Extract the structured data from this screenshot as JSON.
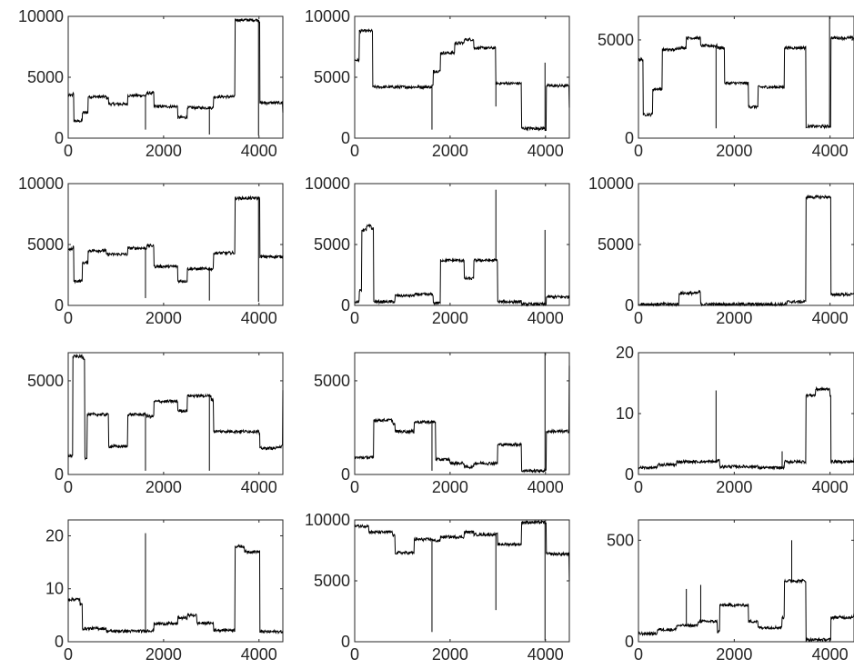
{
  "line_color": "#000000",
  "axis_color": "#262626",
  "chart_data": [
    {
      "type": "line",
      "xlim": [
        0,
        4500
      ],
      "ylim": [
        0,
        10000
      ],
      "xticks": [
        0,
        2000,
        4000
      ],
      "yticks": [
        0,
        5000,
        10000
      ],
      "xtick_labels": [
        "0",
        "2000",
        "4000"
      ],
      "ytick_labels": [
        "0",
        "5000",
        "10000"
      ],
      "segments": [
        [
          0,
          3500
        ],
        [
          100,
          3700
        ],
        [
          120,
          1400
        ],
        [
          300,
          2100
        ],
        [
          420,
          3400
        ],
        [
          800,
          3300
        ],
        [
          850,
          2800
        ],
        [
          1250,
          3500
        ],
        [
          1650,
          3700
        ],
        [
          1800,
          2600
        ],
        [
          2300,
          1700
        ],
        [
          2500,
          2500
        ],
        [
          3050,
          3400
        ],
        [
          3500,
          9700
        ],
        [
          4000,
          9600
        ],
        [
          4020,
          2900
        ],
        [
          4500,
          2100
        ]
      ],
      "spikes": [
        [
          1620,
          700
        ],
        [
          2960,
          300
        ],
        [
          3990,
          200
        ]
      ]
    },
    {
      "type": "line",
      "xlim": [
        0,
        4500
      ],
      "ylim": [
        0,
        10000
      ],
      "xticks": [
        0,
        2000,
        4000
      ],
      "yticks": [
        0,
        5000,
        10000
      ],
      "xtick_labels": [
        "0",
        "2000",
        "4000"
      ],
      "ytick_labels": [
        "0",
        "5000",
        "10000"
      ],
      "segments": [
        [
          0,
          6400
        ],
        [
          100,
          8800
        ],
        [
          380,
          4200
        ],
        [
          1620,
          4300
        ],
        [
          1650,
          5500
        ],
        [
          1800,
          7000
        ],
        [
          2100,
          7800
        ],
        [
          2300,
          8100
        ],
        [
          2500,
          7400
        ],
        [
          2960,
          4500
        ],
        [
          3500,
          800
        ],
        [
          3990,
          700
        ],
        [
          4020,
          4300
        ],
        [
          4500,
          2500
        ]
      ],
      "spikes": [
        [
          1620,
          700
        ],
        [
          2960,
          2600
        ],
        [
          3990,
          6200
        ]
      ]
    },
    {
      "type": "line",
      "xlim": [
        0,
        4500
      ],
      "ylim": [
        0,
        6200
      ],
      "xticks": [
        0,
        2000,
        4000
      ],
      "yticks": [
        0,
        5000
      ],
      "xtick_labels": [
        "0",
        "2000",
        "4000"
      ],
      "ytick_labels": [
        "0",
        "5000"
      ],
      "segments": [
        [
          0,
          4000
        ],
        [
          100,
          1200
        ],
        [
          300,
          2500
        ],
        [
          500,
          4500
        ],
        [
          800,
          4600
        ],
        [
          1000,
          5100
        ],
        [
          1300,
          4700
        ],
        [
          1650,
          4600
        ],
        [
          1800,
          2800
        ],
        [
          2300,
          1600
        ],
        [
          2500,
          2600
        ],
        [
          3050,
          4600
        ],
        [
          3500,
          600
        ],
        [
          3990,
          600
        ],
        [
          4020,
          5100
        ],
        [
          4500,
          5100
        ]
      ],
      "spikes": [
        [
          1620,
          500
        ],
        [
          3990,
          6200
        ]
      ]
    },
    {
      "type": "line",
      "xlim": [
        0,
        4500
      ],
      "ylim": [
        0,
        10000
      ],
      "xticks": [
        0,
        2000,
        4000
      ],
      "yticks": [
        0,
        5000,
        10000
      ],
      "xtick_labels": [
        "0",
        "2000",
        "4000"
      ],
      "ytick_labels": [
        "0",
        "5000",
        "10000"
      ],
      "segments": [
        [
          0,
          4600
        ],
        [
          100,
          4800
        ],
        [
          120,
          2000
        ],
        [
          300,
          3500
        ],
        [
          420,
          4500
        ],
        [
          800,
          4200
        ],
        [
          1250,
          4700
        ],
        [
          1650,
          4900
        ],
        [
          1800,
          3200
        ],
        [
          2300,
          2000
        ],
        [
          2500,
          3000
        ],
        [
          3050,
          4300
        ],
        [
          3500,
          8800
        ],
        [
          4000,
          8800
        ],
        [
          4020,
          4000
        ],
        [
          4500,
          4100
        ]
      ],
      "spikes": [
        [
          1620,
          600
        ],
        [
          2960,
          400
        ],
        [
          3990,
          300
        ]
      ]
    },
    {
      "type": "line",
      "xlim": [
        0,
        4500
      ],
      "ylim": [
        0,
        10000
      ],
      "xticks": [
        0,
        2000,
        4000
      ],
      "yticks": [
        0,
        5000,
        10000
      ],
      "xtick_labels": [
        "0",
        "2000",
        "4000"
      ],
      "ytick_labels": [
        "0",
        "5000",
        "10000"
      ],
      "segments": [
        [
          0,
          300
        ],
        [
          100,
          1200
        ],
        [
          150,
          6200
        ],
        [
          250,
          6500
        ],
        [
          350,
          6300
        ],
        [
          400,
          300
        ],
        [
          800,
          300
        ],
        [
          850,
          800
        ],
        [
          1250,
          900
        ],
        [
          1650,
          200
        ],
        [
          1800,
          3700
        ],
        [
          2300,
          2200
        ],
        [
          2500,
          3700
        ],
        [
          3000,
          300
        ],
        [
          3500,
          100
        ],
        [
          4000,
          100
        ],
        [
          4020,
          700
        ],
        [
          4500,
          600
        ]
      ],
      "spikes": [
        [
          2960,
          9500
        ],
        [
          3990,
          6200
        ]
      ]
    },
    {
      "type": "line",
      "xlim": [
        0,
        4500
      ],
      "ylim": [
        0,
        10000
      ],
      "xticks": [
        0,
        2000,
        4000
      ],
      "yticks": [
        0,
        5000,
        10000
      ],
      "xtick_labels": [
        "0",
        "2000",
        "4000"
      ],
      "ytick_labels": [
        "0",
        "5000",
        "10000"
      ],
      "segments": [
        [
          0,
          100
        ],
        [
          800,
          100
        ],
        [
          850,
          1000
        ],
        [
          1250,
          1100
        ],
        [
          1300,
          100
        ],
        [
          3050,
          100
        ],
        [
          3100,
          300
        ],
        [
          3500,
          8900
        ],
        [
          4000,
          8800
        ],
        [
          4020,
          900
        ],
        [
          4500,
          900
        ]
      ],
      "spikes": []
    },
    {
      "type": "line",
      "xlim": [
        0,
        4500
      ],
      "ylim": [
        0,
        6500
      ],
      "xticks": [
        0,
        2000,
        4000
      ],
      "yticks": [
        0,
        5000
      ],
      "xtick_labels": [
        "0",
        "2000",
        "4000"
      ],
      "ytick_labels": [
        "0",
        "5000"
      ],
      "segments": [
        [
          0,
          1000
        ],
        [
          100,
          6300
        ],
        [
          300,
          6200
        ],
        [
          350,
          900
        ],
        [
          400,
          3200
        ],
        [
          800,
          3200
        ],
        [
          850,
          1500
        ],
        [
          1250,
          3200
        ],
        [
          1650,
          3100
        ],
        [
          1800,
          3900
        ],
        [
          2300,
          3400
        ],
        [
          2500,
          4200
        ],
        [
          3000,
          4000
        ],
        [
          3050,
          2300
        ],
        [
          4000,
          2200
        ],
        [
          4020,
          1400
        ],
        [
          4400,
          1500
        ],
        [
          4500,
          4500
        ]
      ],
      "spikes": [
        [
          1620,
          200
        ],
        [
          2960,
          200
        ]
      ]
    },
    {
      "type": "line",
      "xlim": [
        0,
        4500
      ],
      "ylim": [
        0,
        6500
      ],
      "xticks": [
        0,
        2000,
        4000
      ],
      "yticks": [
        0,
        5000
      ],
      "xtick_labels": [
        "0",
        "2000",
        "4000"
      ],
      "ytick_labels": [
        "0",
        "5000"
      ],
      "segments": [
        [
          0,
          900
        ],
        [
          300,
          900
        ],
        [
          400,
          2900
        ],
        [
          800,
          2700
        ],
        [
          850,
          2300
        ],
        [
          1250,
          2800
        ],
        [
          1650,
          2800
        ],
        [
          1700,
          800
        ],
        [
          2000,
          600
        ],
        [
          2300,
          400
        ],
        [
          2500,
          600
        ],
        [
          3000,
          1600
        ],
        [
          3500,
          200
        ],
        [
          3990,
          200
        ],
        [
          4020,
          2300
        ],
        [
          4500,
          5800
        ]
      ],
      "spikes": [
        [
          1620,
          200
        ],
        [
          3990,
          6500
        ]
      ]
    },
    {
      "type": "line",
      "xlim": [
        0,
        4500
      ],
      "ylim": [
        0,
        20
      ],
      "xticks": [
        0,
        2000,
        4000
      ],
      "yticks": [
        0,
        10,
        20
      ],
      "xtick_labels": [
        "0",
        "2000",
        "4000"
      ],
      "ytick_labels": [
        "0",
        "10",
        "20"
      ],
      "segments": [
        [
          0,
          1.1
        ],
        [
          400,
          1.6
        ],
        [
          800,
          2.1
        ],
        [
          1650,
          2.3
        ],
        [
          1700,
          1.3
        ],
        [
          2500,
          1.1
        ],
        [
          3050,
          2.1
        ],
        [
          3500,
          13
        ],
        [
          3700,
          14
        ],
        [
          4000,
          13
        ],
        [
          4020,
          2.1
        ],
        [
          4500,
          2.8
        ]
      ],
      "spikes": [
        [
          1620,
          13.8
        ],
        [
          3000,
          3.8
        ]
      ]
    },
    {
      "type": "line",
      "xlim": [
        0,
        4500
      ],
      "ylim": [
        0,
        23
      ],
      "xticks": [
        0,
        2000,
        4000
      ],
      "yticks": [
        0,
        10,
        20
      ],
      "xtick_labels": [
        "0",
        "2000",
        "4000"
      ],
      "ytick_labels": [
        "0",
        "10",
        "20"
      ],
      "segments": [
        [
          0,
          8
        ],
        [
          250,
          7
        ],
        [
          300,
          2.5
        ],
        [
          800,
          2
        ],
        [
          1650,
          2.1
        ],
        [
          1800,
          3.4
        ],
        [
          2300,
          4.5
        ],
        [
          2500,
          5
        ],
        [
          2700,
          3.5
        ],
        [
          3050,
          2.2
        ],
        [
          3500,
          18
        ],
        [
          3700,
          17
        ],
        [
          4000,
          17
        ],
        [
          4020,
          1.9
        ],
        [
          4500,
          2
        ]
      ],
      "spikes": [
        [
          1620,
          20.5
        ]
      ]
    },
    {
      "type": "line",
      "xlim": [
        0,
        4500
      ],
      "ylim": [
        0,
        10000
      ],
      "xticks": [
        0,
        2000,
        4000
      ],
      "yticks": [
        0,
        5000,
        10000
      ],
      "xtick_labels": [
        "0",
        "2000",
        "4000"
      ],
      "ytick_labels": [
        "0",
        "5000",
        "10000"
      ],
      "segments": [
        [
          0,
          9500
        ],
        [
          300,
          9000
        ],
        [
          800,
          8700
        ],
        [
          850,
          7300
        ],
        [
          1250,
          8400
        ],
        [
          1650,
          8300
        ],
        [
          1800,
          8600
        ],
        [
          2300,
          9000
        ],
        [
          2500,
          8800
        ],
        [
          3000,
          8000
        ],
        [
          3500,
          9800
        ],
        [
          3990,
          9800
        ],
        [
          4020,
          7200
        ],
        [
          4500,
          5000
        ]
      ],
      "spikes": [
        [
          1620,
          800
        ],
        [
          2960,
          2600
        ],
        [
          3990,
          100
        ]
      ]
    },
    {
      "type": "line",
      "xlim": [
        0,
        4500
      ],
      "ylim": [
        0,
        600
      ],
      "xticks": [
        0,
        2000,
        4000
      ],
      "yticks": [
        0,
        500
      ],
      "xtick_labels": [
        "0",
        "2000",
        "4000"
      ],
      "ytick_labels": [
        "0",
        "500"
      ],
      "segments": [
        [
          0,
          40
        ],
        [
          400,
          60
        ],
        [
          800,
          80
        ],
        [
          1250,
          100
        ],
        [
          1650,
          50
        ],
        [
          1700,
          180
        ],
        [
          2300,
          100
        ],
        [
          2500,
          70
        ],
        [
          3000,
          120
        ],
        [
          3050,
          300
        ],
        [
          3500,
          10
        ],
        [
          4000,
          10
        ],
        [
          4020,
          120
        ],
        [
          4500,
          140
        ]
      ],
      "spikes": [
        [
          1000,
          260
        ],
        [
          1300,
          280
        ],
        [
          3200,
          500
        ]
      ]
    }
  ]
}
